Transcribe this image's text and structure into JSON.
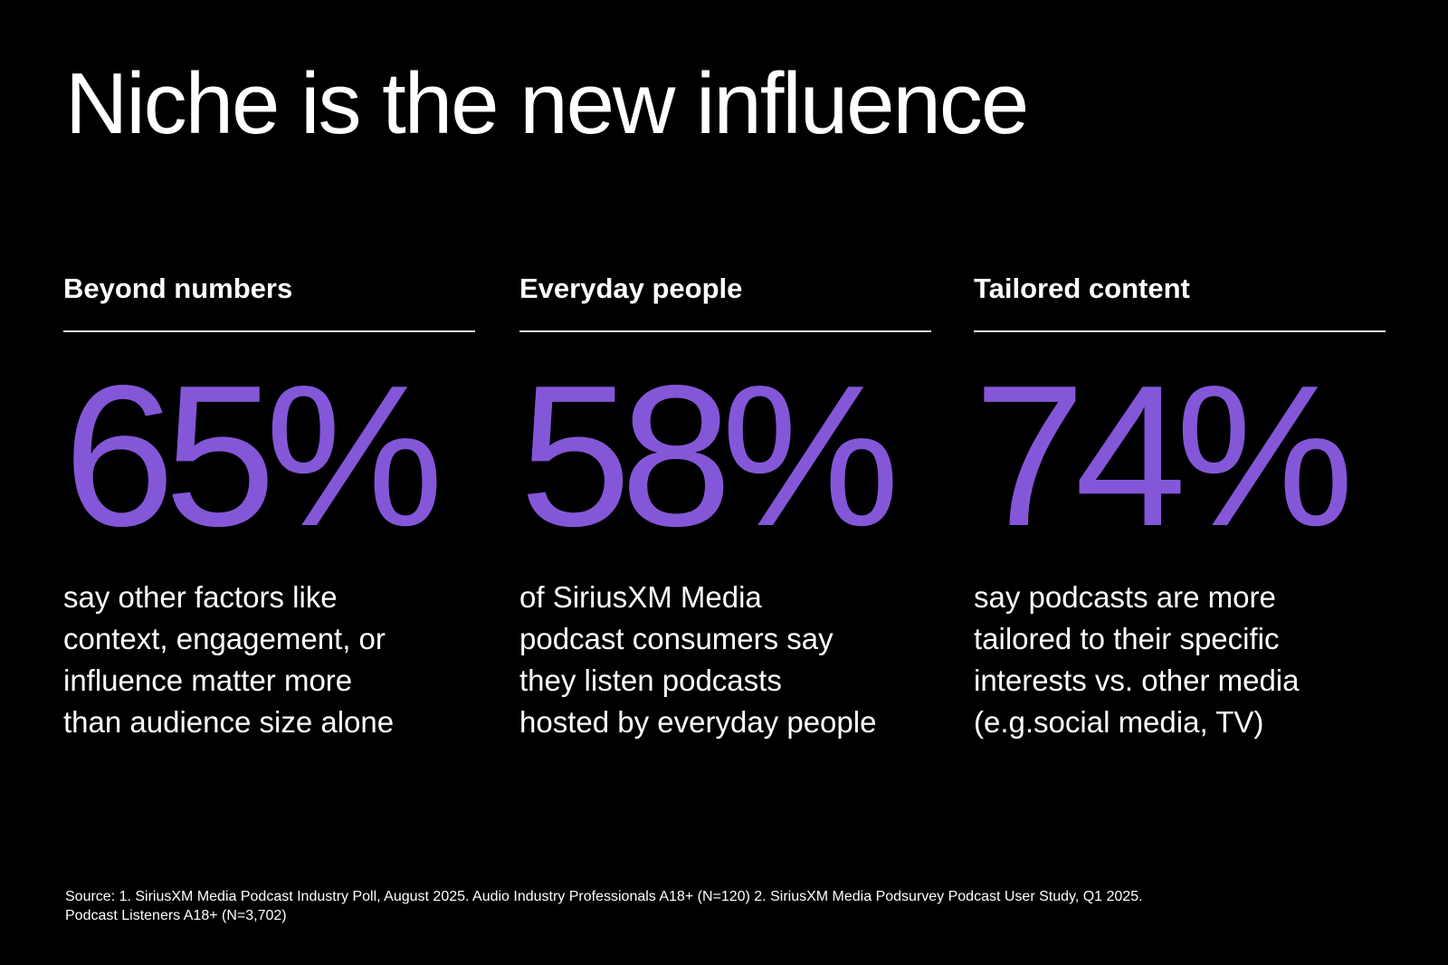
{
  "title": "Niche is the new influence",
  "colors": {
    "background": "#000000",
    "text": "#ffffff",
    "accent": "#8457d9",
    "rule": "#e6e6e6"
  },
  "stats": [
    {
      "heading": "Beyond numbers",
      "value": "65%",
      "description_lines": [
        "say other factors like",
        "context, engagement, or",
        "influence matter more",
        "than audience size alone"
      ]
    },
    {
      "heading": "Everyday people",
      "value": "58%",
      "description_lines": [
        "of SiriusXM Media",
        "podcast consumers say",
        "they listen podcasts",
        "hosted by everyday people"
      ]
    },
    {
      "heading": "Tailored content",
      "value": "74%",
      "description_lines": [
        "say podcasts are more",
        "tailored to their specific",
        "interests vs. other media",
        "(e.g.social media, TV)"
      ]
    }
  ],
  "source_lines": [
    "Source: 1. SiriusXM Media Podcast Industry Poll, August 2025. Audio Industry Professionals A18+ (N=120) 2. SiriusXM Media Podsurvey Podcast User Study, Q1 2025.",
    "Podcast Listeners A18+ (N=3,702)"
  ]
}
